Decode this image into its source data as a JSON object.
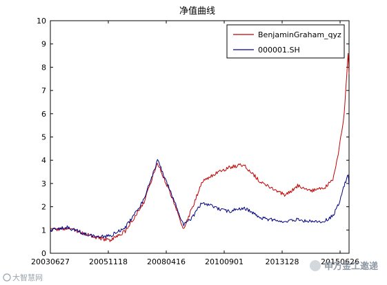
{
  "chart_data": {
    "type": "line",
    "title": "净值曲线",
    "xlabel": "",
    "ylabel": "",
    "ylim": [
      0,
      10
    ],
    "y_ticks": [
      0,
      1,
      2,
      3,
      4,
      5,
      6,
      7,
      8,
      9,
      10
    ],
    "x_tick_labels": [
      "20030627",
      "20051118",
      "20080416",
      "20100901",
      "2013128",
      "20150626"
    ],
    "x_range_dates": [
      "20030627",
      "20150626"
    ],
    "grid": false,
    "legend_position": "top-right",
    "series": [
      {
        "name": "BenjaminGraham_qyz",
        "color": "#c00000",
        "x": [
          "20030627",
          "20040301",
          "20041101",
          "20050601",
          "20051118",
          "20060701",
          "20070401",
          "20071016",
          "20080416",
          "20081104",
          "20090301",
          "20090804",
          "20100401",
          "20100901",
          "20110401",
          "20120101",
          "20121204",
          "20130601",
          "20140101",
          "20140701",
          "20141101",
          "20150201",
          "20150416",
          "20150612",
          "20150626"
        ],
        "y": [
          1.0,
          1.05,
          0.85,
          0.65,
          0.55,
          0.95,
          2.2,
          3.9,
          2.6,
          1.05,
          1.9,
          3.1,
          3.5,
          3.7,
          3.8,
          3.0,
          2.5,
          2.9,
          2.7,
          2.8,
          3.2,
          4.5,
          6.0,
          8.6,
          7.7
        ]
      },
      {
        "name": "000001.SH",
        "color": "#000080",
        "x": [
          "20030627",
          "20040301",
          "20041101",
          "20050601",
          "20051118",
          "20060701",
          "20070401",
          "20071016",
          "20080416",
          "20081104",
          "20090301",
          "20090804",
          "20100401",
          "20100901",
          "20110401",
          "20120101",
          "20121204",
          "20130601",
          "20140101",
          "20140701",
          "20141101",
          "20150201",
          "20150416",
          "20150612",
          "20150626"
        ],
        "y": [
          1.0,
          1.12,
          0.85,
          0.7,
          0.75,
          1.1,
          2.3,
          4.0,
          2.7,
          1.2,
          1.5,
          2.2,
          1.9,
          1.8,
          1.95,
          1.5,
          1.35,
          1.45,
          1.35,
          1.4,
          1.6,
          2.2,
          2.9,
          3.4,
          2.9
        ]
      }
    ]
  },
  "watermark": {
    "left_text": "大智慧网",
    "right_text": "申万金工邀递"
  }
}
